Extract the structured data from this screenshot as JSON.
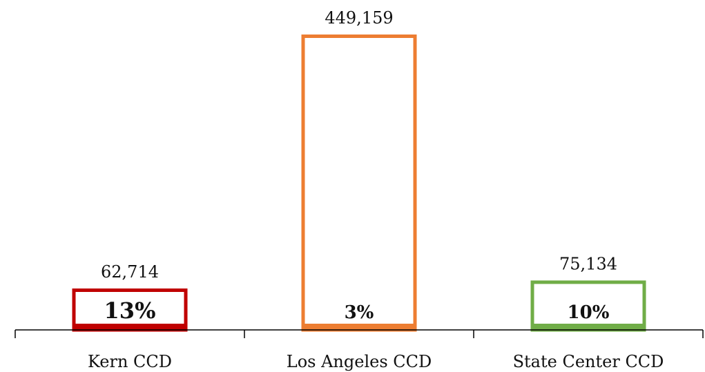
{
  "chart_data": {
    "type": "bar",
    "title": "",
    "xlabel": "",
    "ylabel": "",
    "categories": [
      "Kern CCD",
      "Los Angeles CCD",
      "State Center CCD"
    ],
    "values": [
      62714,
      449159,
      75134
    ],
    "value_labels": [
      "62,714",
      "449,159",
      "75,134"
    ],
    "percent_labels": [
      "13%",
      "3%",
      "10%"
    ],
    "percent_values": [
      13,
      3,
      10
    ],
    "colors": [
      "#C00000",
      "#ED7D31",
      "#70AD47"
    ],
    "ylim": [
      0,
      449159
    ],
    "grid": false,
    "legend": "none",
    "bar_style": "outline"
  }
}
